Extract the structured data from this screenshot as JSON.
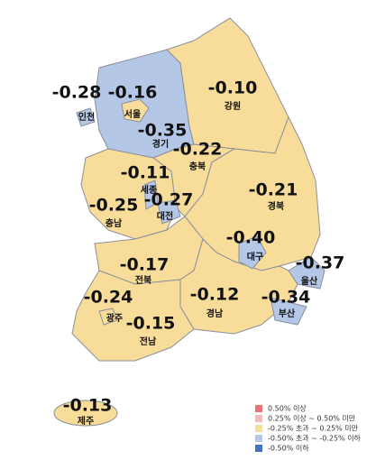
{
  "regions": [
    {
      "name": "인천",
      "value": "-0.28",
      "color": "#b4c7e7"
    },
    {
      "name": "서울",
      "value": "-0.16",
      "color": "#f8dc9a"
    },
    {
      "name": "경기",
      "value": "-0.35",
      "color": "#b4c7e7"
    },
    {
      "name": "강원",
      "value": "-0.10",
      "color": "#f8dc9a"
    },
    {
      "name": "충북",
      "value": "-0.22",
      "color": "#f8dc9a"
    },
    {
      "name": "세종",
      "value": "-0.11",
      "color": "#f8dc9a"
    },
    {
      "name": "충남",
      "value": "-0.25",
      "color": "#b4c7e7"
    },
    {
      "name": "대전",
      "value": "-0.27",
      "color": "#b4c7e7"
    },
    {
      "name": "경북",
      "value": "-0.21",
      "color": "#f8dc9a"
    },
    {
      "name": "대구",
      "value": "-0.40",
      "color": "#b4c7e7"
    },
    {
      "name": "울산",
      "value": "-0.37",
      "color": "#b4c7e7"
    },
    {
      "name": "전북",
      "value": "-0.17",
      "color": "#f8dc9a"
    },
    {
      "name": "경남",
      "value": "-0.12",
      "color": "#f8dc9a"
    },
    {
      "name": "부산",
      "value": "-0.34",
      "color": "#b4c7e7"
    },
    {
      "name": "광주",
      "value": "-0.24",
      "color": "#f8dc9a"
    },
    {
      "name": "전남",
      "value": "-0.15",
      "color": "#f8dc9a"
    },
    {
      "name": "제주",
      "value": "-0.13",
      "color": "#f8dc9a"
    }
  ],
  "legend": [
    {
      "label": "0.50% 이상",
      "color": "#e8727a"
    },
    {
      "label": "0.25% 이상 ~ 0.50% 미만",
      "color": "#f5b8bd"
    },
    {
      "label": "-0.25% 초과 ~ 0.25% 미만",
      "color": "#f8dc9a"
    },
    {
      "label": "-0.50% 초과 ~ -0.25% 이하",
      "color": "#b4c7e7"
    },
    {
      "label": "-0.50% 이하",
      "color": "#4472c4"
    }
  ]
}
